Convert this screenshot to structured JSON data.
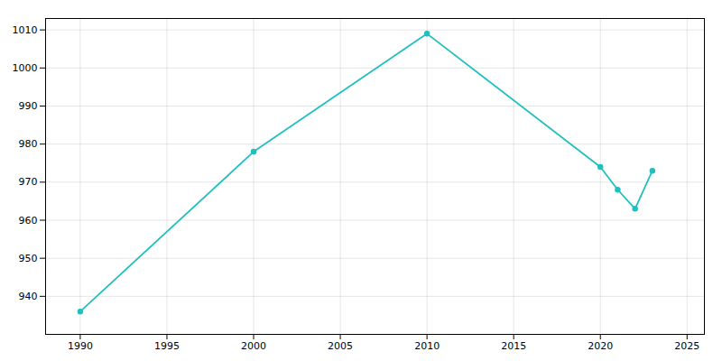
{
  "chart_data": {
    "type": "line",
    "x": [
      1990,
      2000,
      2010,
      2020,
      2021,
      2022,
      2023
    ],
    "values": [
      936,
      978,
      1009,
      974,
      968,
      963,
      973
    ],
    "color": "#20c0c0",
    "marker": "circle",
    "xlim": [
      1988,
      2026
    ],
    "ylim": [
      930,
      1013
    ],
    "xticks": [
      1990,
      1995,
      2000,
      2005,
      2010,
      2015,
      2020,
      2025
    ],
    "yticks": [
      940,
      950,
      960,
      970,
      980,
      990,
      1000,
      1010
    ],
    "grid": true
  }
}
